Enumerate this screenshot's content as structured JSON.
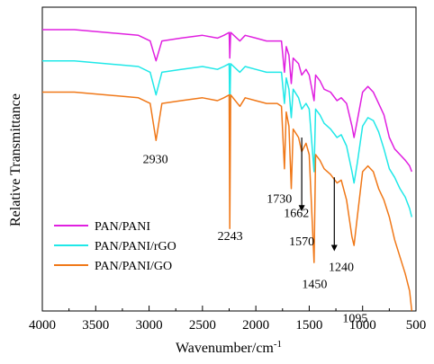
{
  "chart_data": {
    "type": "line",
    "xlabel": "Wavenumber/cm",
    "xlabel_sup": "-1",
    "ylabel": "Relative Transmittance",
    "xlim": [
      4000,
      500
    ],
    "x_reversed": true,
    "grid": false,
    "legend_placement": "lower-left",
    "x_ticks": [
      "4000",
      "3500",
      "3000",
      "2500",
      "2000",
      "1500",
      "1000",
      "500"
    ],
    "x_tick_values": [
      4000,
      3500,
      3000,
      2500,
      2000,
      1500,
      1000,
      500
    ],
    "series": [
      {
        "name": "PAN/PANI",
        "color": "#e020e0",
        "points": [
          [
            4000,
            0.06
          ],
          [
            3700,
            0.06
          ],
          [
            3400,
            0.07
          ],
          [
            3100,
            0.08
          ],
          [
            2990,
            0.1
          ],
          [
            2935,
            0.17
          ],
          [
            2880,
            0.1
          ],
          [
            2700,
            0.09
          ],
          [
            2500,
            0.08
          ],
          [
            2360,
            0.09
          ],
          [
            2300,
            0.08
          ],
          [
            2250,
            0.07
          ],
          [
            2244,
            0.16
          ],
          [
            2236,
            0.07
          ],
          [
            2150,
            0.1
          ],
          [
            2100,
            0.08
          ],
          [
            2000,
            0.09
          ],
          [
            1900,
            0.1
          ],
          [
            1800,
            0.1
          ],
          [
            1760,
            0.1
          ],
          [
            1732,
            0.21
          ],
          [
            1715,
            0.12
          ],
          [
            1690,
            0.15
          ],
          [
            1668,
            0.25
          ],
          [
            1650,
            0.16
          ],
          [
            1600,
            0.18
          ],
          [
            1570,
            0.22
          ],
          [
            1530,
            0.2
          ],
          [
            1500,
            0.22
          ],
          [
            1455,
            0.31
          ],
          [
            1440,
            0.22
          ],
          [
            1400,
            0.24
          ],
          [
            1360,
            0.27
          ],
          [
            1300,
            0.28
          ],
          [
            1240,
            0.31
          ],
          [
            1200,
            0.3
          ],
          [
            1150,
            0.32
          ],
          [
            1100,
            0.4
          ],
          [
            1080,
            0.44
          ],
          [
            1050,
            0.38
          ],
          [
            1000,
            0.28
          ],
          [
            950,
            0.26
          ],
          [
            900,
            0.28
          ],
          [
            850,
            0.32
          ],
          [
            800,
            0.36
          ],
          [
            750,
            0.44
          ],
          [
            700,
            0.48
          ],
          [
            650,
            0.5
          ],
          [
            600,
            0.52
          ],
          [
            560,
            0.54
          ],
          [
            540,
            0.56
          ]
        ]
      },
      {
        "name": "PAN/PANI/rGO",
        "color": "#20e8e8",
        "points": [
          [
            4000,
            0.17
          ],
          [
            3700,
            0.17
          ],
          [
            3400,
            0.18
          ],
          [
            3100,
            0.19
          ],
          [
            2990,
            0.21
          ],
          [
            2935,
            0.29
          ],
          [
            2880,
            0.21
          ],
          [
            2700,
            0.2
          ],
          [
            2500,
            0.19
          ],
          [
            2360,
            0.2
          ],
          [
            2300,
            0.19
          ],
          [
            2250,
            0.18
          ],
          [
            2244,
            0.35
          ],
          [
            2236,
            0.18
          ],
          [
            2150,
            0.21
          ],
          [
            2100,
            0.19
          ],
          [
            2000,
            0.2
          ],
          [
            1900,
            0.21
          ],
          [
            1800,
            0.21
          ],
          [
            1760,
            0.21
          ],
          [
            1732,
            0.32
          ],
          [
            1715,
            0.23
          ],
          [
            1690,
            0.27
          ],
          [
            1668,
            0.37
          ],
          [
            1650,
            0.27
          ],
          [
            1600,
            0.3
          ],
          [
            1570,
            0.34
          ],
          [
            1530,
            0.32
          ],
          [
            1500,
            0.34
          ],
          [
            1455,
            0.56
          ],
          [
            1440,
            0.34
          ],
          [
            1400,
            0.36
          ],
          [
            1360,
            0.39
          ],
          [
            1300,
            0.41
          ],
          [
            1240,
            0.44
          ],
          [
            1200,
            0.43
          ],
          [
            1150,
            0.47
          ],
          [
            1100,
            0.56
          ],
          [
            1080,
            0.6
          ],
          [
            1050,
            0.53
          ],
          [
            1000,
            0.4
          ],
          [
            950,
            0.37
          ],
          [
            900,
            0.38
          ],
          [
            850,
            0.42
          ],
          [
            800,
            0.48
          ],
          [
            750,
            0.55
          ],
          [
            700,
            0.58
          ],
          [
            650,
            0.62
          ],
          [
            600,
            0.65
          ],
          [
            560,
            0.69
          ],
          [
            540,
            0.72
          ]
        ]
      },
      {
        "name": "PAN/PANI/GO",
        "color": "#f07818",
        "points": [
          [
            4000,
            0.28
          ],
          [
            3700,
            0.28
          ],
          [
            3400,
            0.29
          ],
          [
            3100,
            0.3
          ],
          [
            2990,
            0.32
          ],
          [
            2935,
            0.45
          ],
          [
            2880,
            0.32
          ],
          [
            2700,
            0.31
          ],
          [
            2500,
            0.3
          ],
          [
            2360,
            0.31
          ],
          [
            2300,
            0.3
          ],
          [
            2250,
            0.29
          ],
          [
            2244,
            0.76
          ],
          [
            2236,
            0.29
          ],
          [
            2150,
            0.33
          ],
          [
            2100,
            0.3
          ],
          [
            2000,
            0.31
          ],
          [
            1900,
            0.32
          ],
          [
            1800,
            0.32
          ],
          [
            1760,
            0.33
          ],
          [
            1732,
            0.55
          ],
          [
            1715,
            0.35
          ],
          [
            1690,
            0.4
          ],
          [
            1668,
            0.62
          ],
          [
            1650,
            0.41
          ],
          [
            1600,
            0.44
          ],
          [
            1570,
            0.49
          ],
          [
            1530,
            0.46
          ],
          [
            1500,
            0.5
          ],
          [
            1455,
            0.88
          ],
          [
            1440,
            0.5
          ],
          [
            1400,
            0.52
          ],
          [
            1360,
            0.55
          ],
          [
            1300,
            0.57
          ],
          [
            1240,
            0.6
          ],
          [
            1200,
            0.59
          ],
          [
            1150,
            0.66
          ],
          [
            1100,
            0.79
          ],
          [
            1080,
            0.82
          ],
          [
            1050,
            0.72
          ],
          [
            1000,
            0.56
          ],
          [
            950,
            0.54
          ],
          [
            900,
            0.56
          ],
          [
            850,
            0.62
          ],
          [
            800,
            0.66
          ],
          [
            750,
            0.72
          ],
          [
            700,
            0.8
          ],
          [
            650,
            0.86
          ],
          [
            600,
            0.92
          ],
          [
            560,
            0.98
          ],
          [
            540,
            1.05
          ]
        ]
      }
    ],
    "annotations": [
      {
        "text": "2930",
        "x": 2940,
        "y": 0.53
      },
      {
        "text": "2243",
        "x": 2240,
        "y": 0.8
      },
      {
        "text": "1730",
        "x": 1780,
        "y": 0.67
      },
      {
        "text": "1662",
        "x": 1620,
        "y": 0.72
      },
      {
        "text": "1570",
        "x": 1570,
        "y": 0.82
      },
      {
        "text": "1240",
        "x": 1200,
        "y": 0.91
      },
      {
        "text": "1450",
        "x": 1450,
        "y": 0.97
      },
      {
        "text": "1095",
        "x": 1070,
        "y": 1.09
      }
    ],
    "arrows": [
      {
        "x": 1570,
        "y1": 0.44,
        "y2": 0.7
      },
      {
        "x": 1265,
        "y1": 0.58,
        "y2": 0.84
      }
    ]
  }
}
